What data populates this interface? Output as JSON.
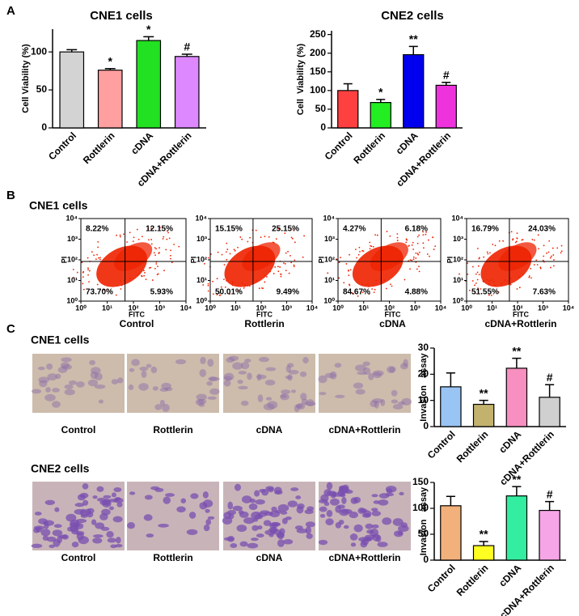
{
  "panel_labels": [
    "A",
    "B",
    "C"
  ],
  "flow_title": "CNE1 cells",
  "chart_data": [
    {
      "type": "bar",
      "title": "CNE1 cells",
      "ylabel": "Cell Viability (%)",
      "categories": [
        "Control",
        "Rottlerin",
        "cDNA",
        "cDNA+Rottlerin"
      ],
      "values": [
        100,
        76,
        115,
        94
      ],
      "errors": [
        3,
        2,
        5,
        3
      ],
      "annotations": [
        null,
        "*",
        "*",
        "#"
      ],
      "colors": [
        "#d3d3d3",
        "#ff9f9f",
        "#22e022",
        "#dd88ff"
      ],
      "ylim": [
        0,
        130
      ],
      "yticks": [
        0,
        50,
        100
      ]
    },
    {
      "type": "bar",
      "title": "CNE2 cells",
      "ylabel": "Cell  Viability (%)",
      "categories": [
        "Control",
        "Rottlerin",
        "cDNA",
        "cDNA+Rottlerin"
      ],
      "values": [
        100,
        68,
        196,
        114
      ],
      "errors": [
        18,
        8,
        22,
        8
      ],
      "annotations": [
        null,
        "*",
        "**",
        "#"
      ],
      "colors": [
        "#ff4040",
        "#22ee22",
        "#0000ee",
        "#ee33dd"
      ],
      "ylim": [
        0,
        260
      ],
      "yticks": [
        0,
        50,
        100,
        150,
        200,
        250
      ]
    },
    {
      "type": "quadrant",
      "subtitle": "Control",
      "xlabel": "FITC",
      "ylabel": "PI",
      "xscale": "log",
      "yscale": "log",
      "values": [
        8.22,
        12.15,
        73.7,
        5.93
      ],
      "value_labels": [
        "8.22%",
        "12.15%",
        "73.70%",
        "5.93%"
      ],
      "xlim": [
        1,
        10000
      ],
      "ylim": [
        1,
        10000
      ],
      "xticks": [
        {
          "value": 1,
          "label": "10⁰"
        },
        {
          "value": 10,
          "label": "10¹"
        },
        {
          "value": 100,
          "label": "10²"
        },
        {
          "value": 1000,
          "label": "10³"
        },
        {
          "value": 10000,
          "label": "10⁴"
        }
      ],
      "yticks": [
        {
          "value": 1,
          "label": "10⁰"
        },
        {
          "value": 10,
          "label": "10¹"
        },
        {
          "value": 100,
          "label": "10²"
        },
        {
          "value": 1000,
          "label": "10³"
        },
        {
          "value": 10000,
          "label": "10⁴"
        }
      ],
      "color": "#ee2200"
    },
    {
      "type": "quadrant",
      "subtitle": "Rottlerin",
      "xlabel": "FITC",
      "ylabel": "PI",
      "xscale": "log",
      "yscale": "log",
      "values": [
        15.15,
        25.15,
        50.01,
        9.49
      ],
      "value_labels": [
        "15.15%",
        "25.15%",
        "50.01%",
        "9.49%"
      ],
      "xlim": [
        1,
        10000
      ],
      "ylim": [
        1,
        10000
      ],
      "xticks": [
        {
          "value": 1,
          "label": "10⁰"
        },
        {
          "value": 10,
          "label": "10¹"
        },
        {
          "value": 100,
          "label": "10²"
        },
        {
          "value": 1000,
          "label": "10³"
        },
        {
          "value": 10000,
          "label": "10⁴"
        }
      ],
      "yticks": [
        {
          "value": 1,
          "label": "10⁰"
        },
        {
          "value": 10,
          "label": "10¹"
        },
        {
          "value": 100,
          "label": "10²"
        },
        {
          "value": 1000,
          "label": "10³"
        },
        {
          "value": 10000,
          "label": "10⁴"
        }
      ],
      "color": "#ee2200"
    },
    {
      "type": "quadrant",
      "subtitle": "cDNA",
      "xlabel": "FITC",
      "ylabel": "PI",
      "xscale": "log",
      "yscale": "log",
      "values": [
        4.27,
        6.18,
        84.67,
        4.88
      ],
      "value_labels": [
        "4.27%",
        "6.18%",
        "84.67%",
        "4.88%"
      ],
      "xlim": [
        1,
        10000
      ],
      "ylim": [
        1,
        10000
      ],
      "xticks": [
        {
          "value": 1,
          "label": "10⁰"
        },
        {
          "value": 10,
          "label": "10¹"
        },
        {
          "value": 100,
          "label": "10²"
        },
        {
          "value": 1000,
          "label": "10³"
        },
        {
          "value": 10000,
          "label": "10⁴"
        }
      ],
      "yticks": [
        {
          "value": 1,
          "label": "10⁰"
        },
        {
          "value": 10,
          "label": "10¹"
        },
        {
          "value": 100,
          "label": "10²"
        },
        {
          "value": 1000,
          "label": "10³"
        },
        {
          "value": 10000,
          "label": "10⁴"
        }
      ],
      "color": "#ee2200"
    },
    {
      "type": "quadrant",
      "subtitle": "cDNA+Rottlerin",
      "xlabel": "FITC",
      "ylabel": "PI",
      "xscale": "log",
      "yscale": "log",
      "values": [
        16.79,
        24.03,
        51.55,
        7.63
      ],
      "value_labels": [
        "16.79%",
        "24.03%",
        "51.55%",
        "7.63%"
      ],
      "xlim": [
        1,
        10000
      ],
      "ylim": [
        1,
        10000
      ],
      "xticks": [
        {
          "value": 1,
          "label": "10⁰"
        },
        {
          "value": 10,
          "label": "10¹"
        },
        {
          "value": 100,
          "label": "10²"
        },
        {
          "value": 1000,
          "label": "10³"
        },
        {
          "value": 10000,
          "label": "10⁴"
        }
      ],
      "yticks": [
        {
          "value": 1,
          "label": "10⁰"
        },
        {
          "value": 10,
          "label": "10¹"
        },
        {
          "value": 100,
          "label": "10²"
        },
        {
          "value": 1000,
          "label": "10³"
        },
        {
          "value": 10000,
          "label": "10⁴"
        }
      ],
      "color": "#ee2200"
    },
    {
      "type": "bar",
      "ylabel": "Invasion   assay",
      "categories": [
        "Control",
        "Rottlerin",
        "cDNA",
        "cDNA+Rottlerin"
      ],
      "values": [
        15.2,
        8.5,
        22.3,
        11.2
      ],
      "errors": [
        5.3,
        1.5,
        3.8,
        4.8
      ],
      "annotations": [
        null,
        "**",
        "**",
        "#"
      ],
      "colors": [
        "#99c4f4",
        "#c2b26e",
        "#f790c0",
        "#d0d0d0"
      ],
      "ylim": [
        0,
        30
      ],
      "yticks": [
        0,
        10,
        20,
        30
      ]
    },
    {
      "type": "bar",
      "ylabel": "Invasion   assay",
      "categories": [
        "Control",
        "Rottlerin",
        "cDNA",
        "cDNA+Rottlerin"
      ],
      "values": [
        105,
        28,
        124,
        96
      ],
      "errors": [
        18,
        8,
        18,
        17
      ],
      "annotations": [
        null,
        "**",
        "**",
        "#"
      ],
      "colors": [
        "#f2b07a",
        "#ffff22",
        "#33eea0",
        "#f6a6e6"
      ],
      "ylim": [
        0,
        150
      ],
      "yticks": [
        0,
        50,
        100,
        150
      ]
    }
  ],
  "invasion": [
    {
      "title": "CNE1 cells",
      "captions": [
        "Control",
        "Rottlerin",
        "cDNA",
        "cDNA+Rottlerin"
      ]
    },
    {
      "title": "CNE2 cells",
      "captions": [
        "Control",
        "Rottlerin",
        "cDNA",
        "cDNA+Rottlerin"
      ]
    }
  ]
}
